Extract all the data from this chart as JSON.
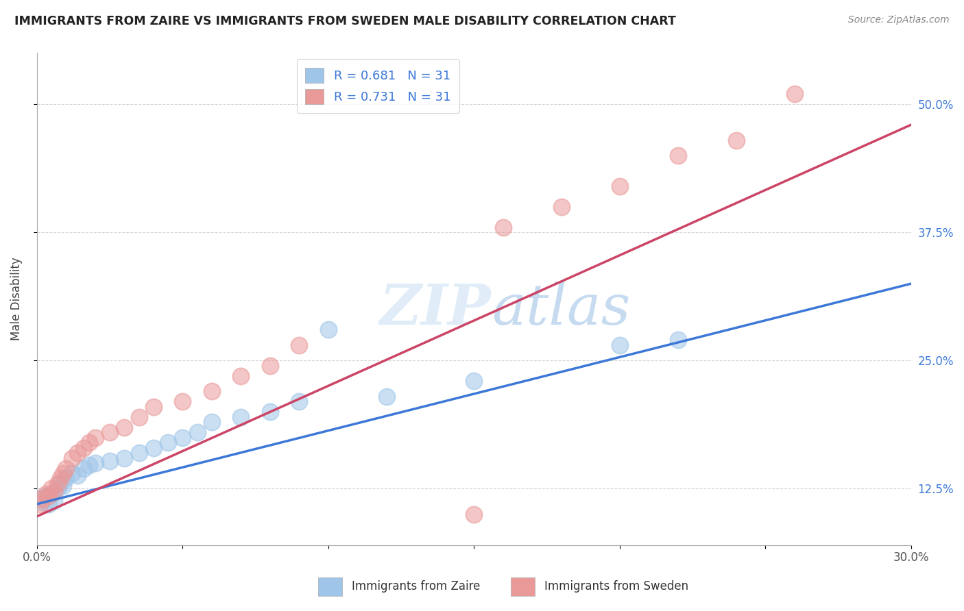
{
  "title": "IMMIGRANTS FROM ZAIRE VS IMMIGRANTS FROM SWEDEN MALE DISABILITY CORRELATION CHART",
  "source": "Source: ZipAtlas.com",
  "ylabel": "Male Disability",
  "xlim": [
    0.0,
    0.3
  ],
  "ylim": [
    0.07,
    0.55
  ],
  "ytick_labels": [
    "12.5%",
    "25.0%",
    "37.5%",
    "50.0%"
  ],
  "ytick_positions": [
    0.125,
    0.25,
    0.375,
    0.5
  ],
  "xtick_positions": [
    0.0,
    0.05,
    0.1,
    0.15,
    0.2,
    0.25,
    0.3
  ],
  "xtick_labels": [
    "0.0%",
    "",
    "",
    "",
    "",
    "",
    "30.0%"
  ],
  "r_zaire": 0.681,
  "n_zaire": 31,
  "r_sweden": 0.731,
  "n_sweden": 31,
  "legend_label_zaire": "Immigrants from Zaire",
  "legend_label_sweden": "Immigrants from Sweden",
  "color_zaire": "#9fc5e8",
  "color_sweden": "#ea9999",
  "line_color_zaire": "#3c78d8",
  "line_color_sweden": "#cc4466",
  "background_color": "#ffffff",
  "zaire_x": [
    0.001,
    0.002,
    0.003,
    0.004,
    0.005,
    0.006,
    0.007,
    0.008,
    0.009,
    0.01,
    0.012,
    0.014,
    0.016,
    0.018,
    0.02,
    0.025,
    0.03,
    0.035,
    0.04,
    0.045,
    0.05,
    0.055,
    0.06,
    0.07,
    0.08,
    0.09,
    0.1,
    0.12,
    0.15,
    0.2,
    0.22
  ],
  "zaire_y": [
    0.115,
    0.112,
    0.118,
    0.11,
    0.12,
    0.113,
    0.125,
    0.13,
    0.128,
    0.135,
    0.14,
    0.138,
    0.145,
    0.148,
    0.15,
    0.152,
    0.155,
    0.16,
    0.165,
    0.17,
    0.175,
    0.18,
    0.19,
    0.195,
    0.2,
    0.21,
    0.28,
    0.215,
    0.23,
    0.265,
    0.27
  ],
  "sweden_x": [
    0.001,
    0.002,
    0.003,
    0.004,
    0.005,
    0.006,
    0.007,
    0.008,
    0.009,
    0.01,
    0.012,
    0.014,
    0.016,
    0.018,
    0.02,
    0.025,
    0.03,
    0.035,
    0.04,
    0.05,
    0.06,
    0.07,
    0.08,
    0.09,
    0.15,
    0.16,
    0.18,
    0.2,
    0.22,
    0.24,
    0.26
  ],
  "sweden_y": [
    0.11,
    0.115,
    0.12,
    0.118,
    0.125,
    0.122,
    0.13,
    0.135,
    0.14,
    0.145,
    0.155,
    0.16,
    0.165,
    0.17,
    0.175,
    0.18,
    0.185,
    0.195,
    0.205,
    0.21,
    0.22,
    0.235,
    0.245,
    0.265,
    0.1,
    0.38,
    0.4,
    0.42,
    0.45,
    0.465,
    0.51
  ],
  "zaire_line_x": [
    0.0,
    0.3
  ],
  "zaire_line_y": [
    0.11,
    0.325
  ],
  "sweden_line_x": [
    0.0,
    0.3
  ],
  "sweden_line_y": [
    0.098,
    0.48
  ]
}
